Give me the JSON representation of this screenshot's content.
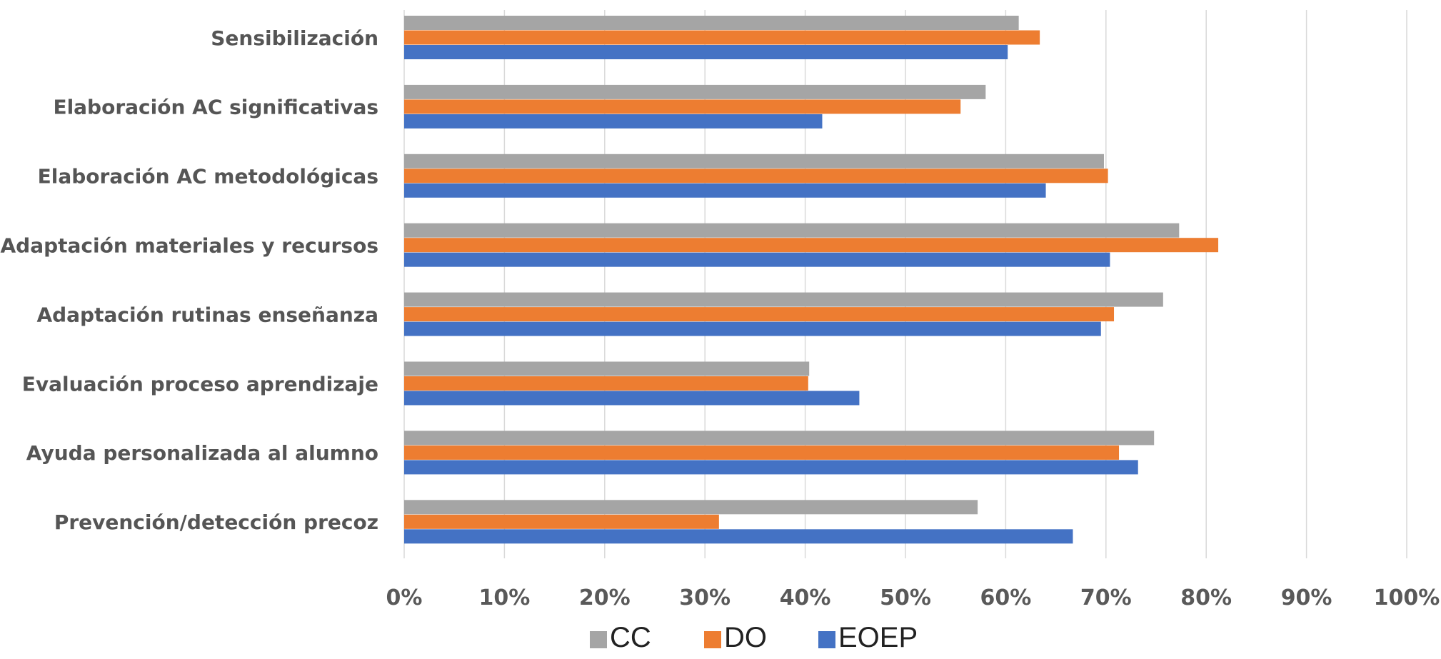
{
  "chart_data": {
    "type": "bar",
    "orientation": "horizontal",
    "categories": [
      "Sensibilización",
      "Elaboración AC significativas",
      "Elaboración AC metodológicas",
      "Adaptación materiales y recursos",
      "Adaptación rutinas enseñanza",
      "Evaluación proceso aprendizaje",
      "Ayuda personalizada al alumno",
      "Prevención/detección precoz"
    ],
    "series": [
      {
        "name": "CC",
        "color": "#a5a5a5",
        "values": [
          61.3,
          58.0,
          69.8,
          77.3,
          75.7,
          40.4,
          74.8,
          57.2
        ]
      },
      {
        "name": "DO",
        "color": "#ed7d31",
        "values": [
          63.4,
          55.5,
          70.2,
          81.2,
          70.8,
          40.3,
          71.3,
          31.4
        ]
      },
      {
        "name": "EOEP",
        "color": "#4472c4",
        "values": [
          60.2,
          41.7,
          64.0,
          70.4,
          69.5,
          45.4,
          73.2,
          66.7
        ]
      }
    ],
    "xlim": [
      0,
      100
    ],
    "xticks": [
      "0%",
      "10%",
      "20%",
      "30%",
      "40%",
      "50%",
      "60%",
      "70%",
      "80%",
      "90%",
      "100%"
    ],
    "grid": true,
    "legend_position": "bottom"
  }
}
